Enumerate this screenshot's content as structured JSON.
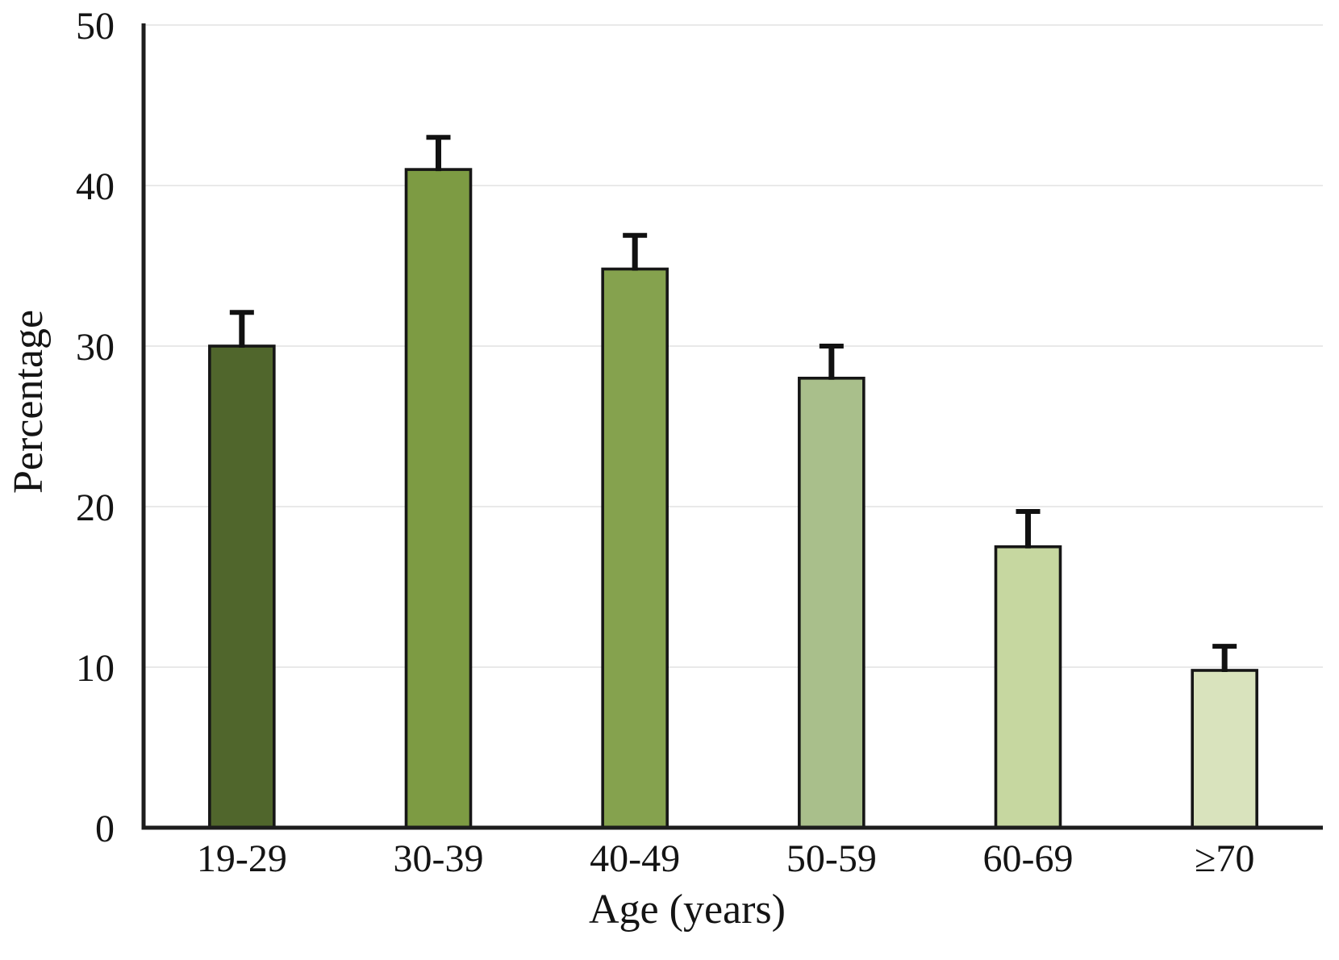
{
  "chart_data": {
    "type": "bar",
    "title": "",
    "xlabel": "Age (years)",
    "ylabel": "Percentage",
    "categories": [
      "19-29",
      "30-39",
      "40-49",
      "50-59",
      "60-69",
      "≥70"
    ],
    "values": [
      30,
      41,
      34.8,
      28,
      17.5,
      9.8
    ],
    "error_upper": [
      2.1,
      2.0,
      2.1,
      2.0,
      2.2,
      1.5
    ],
    "ylim": [
      0,
      50
    ],
    "yticks": [
      0,
      10,
      20,
      30,
      40,
      50
    ],
    "grid": "horizontal",
    "legend": "none",
    "bar_colors": [
      "#50662c",
      "#7d9b43",
      "#85a24e",
      "#a9bf8b",
      "#c6d7a0",
      "#d9e3bd"
    ],
    "bar_border_color": "#161616",
    "error_bar_color": "#111111",
    "gridline_color": "#e2e2e2",
    "axis_color": "#1d1d1d",
    "tick_label_color": "#141414",
    "background_color": "#ffffff"
  }
}
